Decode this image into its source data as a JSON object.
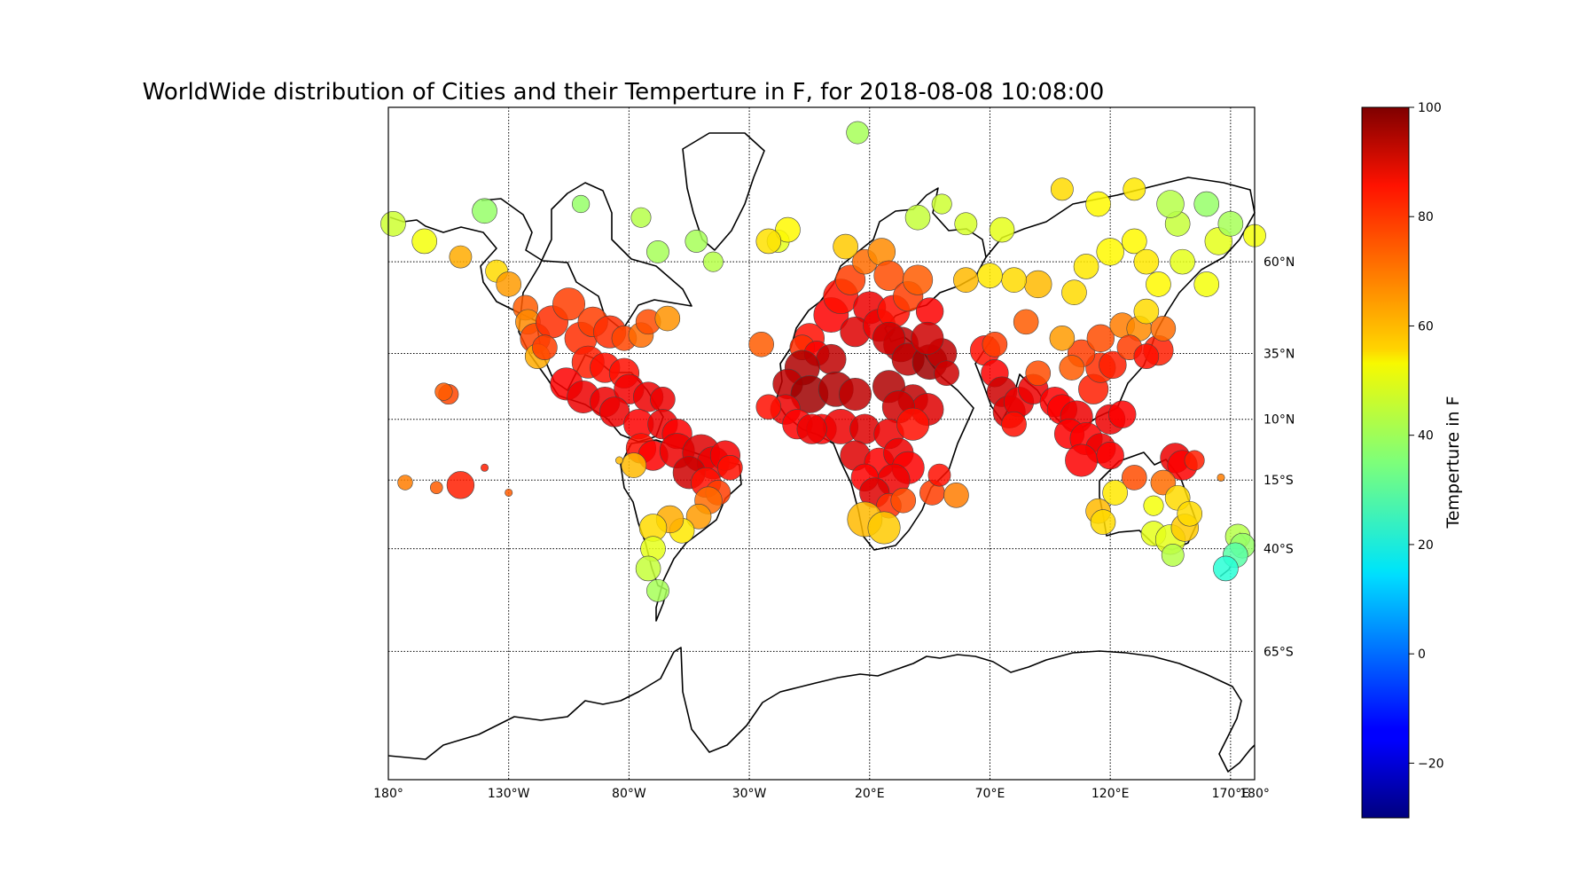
{
  "title": "WorldWide distribution of Cities and their Temperture in F, for 2018-08-08 10:08:00",
  "colorbar": {
    "label": "Temperture in F",
    "ticks": [
      100,
      80,
      60,
      40,
      20,
      0,
      -20
    ],
    "range": [
      -30,
      100
    ],
    "colormap": "jet"
  },
  "map": {
    "projection": "Mercator",
    "lon_range": [
      -180,
      180
    ],
    "lat_range": [
      -80,
      80
    ],
    "parallels": [
      {
        "lat": 60,
        "label": "60°N"
      },
      {
        "lat": 35,
        "label": "35°N"
      },
      {
        "lat": 10,
        "label": "10°N"
      },
      {
        "lat": -15,
        "label": "15°S"
      },
      {
        "lat": -40,
        "label": "40°S"
      },
      {
        "lat": -65,
        "label": "65°S"
      }
    ],
    "meridians": [
      {
        "lon": -180,
        "label": "180°"
      },
      {
        "lon": -130,
        "label": "130°W"
      },
      {
        "lon": -80,
        "label": "80°W"
      },
      {
        "lon": -30,
        "label": "30°W"
      },
      {
        "lon": 20,
        "label": "20°E"
      },
      {
        "lon": 70,
        "label": "70°E"
      },
      {
        "lon": 120,
        "label": "120°E"
      },
      {
        "lon": 170,
        "label": "170°E"
      },
      {
        "lon": 180,
        "label": "180°"
      }
    ]
  },
  "chart_data": {
    "type": "scatter",
    "title": "WorldWide distribution of Cities and their Temperture in F, for 2018-08-08 10:08:00",
    "xlabel": "",
    "ylabel": "",
    "colorbar_label": "Temperture in F",
    "fields": [
      "lon",
      "lat",
      "temp_F",
      "relative_size"
    ],
    "points": [
      [
        -178,
        67,
        45,
        1.0
      ],
      [
        -165,
        64,
        50,
        1.0
      ],
      [
        -150,
        61,
        62,
        0.9
      ],
      [
        -140,
        69,
        38,
        1.0
      ],
      [
        -135,
        58,
        56,
        0.9
      ],
      [
        -130,
        55,
        64,
        1.0
      ],
      [
        -123,
        49,
        72,
        1.0
      ],
      [
        -122,
        45,
        66,
        1.0
      ],
      [
        -119,
        40,
        75,
        1.2
      ],
      [
        -118,
        34,
        62,
        1.0
      ],
      [
        -112,
        45,
        78,
        1.3
      ],
      [
        -115,
        37,
        76,
        1.0
      ],
      [
        -105,
        50,
        76,
        1.3
      ],
      [
        -100,
        40,
        78,
        1.3
      ],
      [
        -95,
        45,
        76,
        1.2
      ],
      [
        -88,
        42,
        78,
        1.3
      ],
      [
        -82,
        40,
        75,
        1.0
      ],
      [
        -75,
        41,
        70,
        1.0
      ],
      [
        -72,
        45,
        74,
        1.0
      ],
      [
        -64,
        46,
        65,
        1.0
      ],
      [
        -97,
        32,
        80,
        1.3
      ],
      [
        -90,
        30,
        82,
        1.2
      ],
      [
        -82,
        28,
        82,
        1.2
      ],
      [
        -106,
        24,
        84,
        1.3
      ],
      [
        -99,
        19,
        86,
        1.3
      ],
      [
        -90,
        17,
        86,
        1.2
      ],
      [
        -80,
        22,
        85,
        1.2
      ],
      [
        -72,
        19,
        86,
        1.2
      ],
      [
        -66,
        18,
        86,
        1.0
      ],
      [
        -86,
        13,
        86,
        1.2
      ],
      [
        -76,
        8,
        84,
        1.2
      ],
      [
        -66,
        8,
        86,
        1.2
      ],
      [
        -60,
        4,
        84,
        1.2
      ],
      [
        -155,
        20,
        75,
        0.8
      ],
      [
        -157,
        21,
        72,
        0.7
      ],
      [
        -75,
        -2,
        82,
        1.2
      ],
      [
        -70,
        -5,
        84,
        1.2
      ],
      [
        -60,
        -3,
        86,
        1.4
      ],
      [
        -50,
        -4,
        88,
        1.5
      ],
      [
        -45,
        -8,
        86,
        1.3
      ],
      [
        -40,
        -5,
        85,
        1.2
      ],
      [
        -38,
        -10,
        82,
        1.0
      ],
      [
        -55,
        -12,
        90,
        1.3
      ],
      [
        -48,
        -16,
        82,
        1.2
      ],
      [
        -43,
        -20,
        76,
        1.0
      ],
      [
        -47,
        -23,
        70,
        1.1
      ],
      [
        -51,
        -29,
        64,
        1.0
      ],
      [
        -58,
        -34,
        54,
        1.0
      ],
      [
        -63,
        -30,
        62,
        1.1
      ],
      [
        -70,
        -33,
        56,
        1.1
      ],
      [
        -70,
        -40,
        48,
        1.0
      ],
      [
        -72,
        -46,
        44,
        1.0
      ],
      [
        -68,
        -52,
        40,
        0.9
      ],
      [
        -78,
        -9,
        60,
        1.0
      ],
      [
        -173,
        -16,
        68,
        0.6
      ],
      [
        -160,
        -18,
        72,
        0.5
      ],
      [
        -150,
        -17,
        80,
        1.1
      ],
      [
        -140,
        -10,
        80,
        0.3
      ],
      [
        -130,
        -20,
        72,
        0.3
      ],
      [
        -84,
        -7,
        60,
        0.3
      ],
      [
        -5,
        40,
        82,
        1.2
      ],
      [
        -8,
        37,
        78,
        1.0
      ],
      [
        -2,
        35,
        84,
        1.0
      ],
      [
        4,
        47,
        84,
        1.4
      ],
      [
        8,
        52,
        82,
        1.4
      ],
      [
        12,
        56,
        76,
        1.2
      ],
      [
        18,
        60,
        70,
        1.0
      ],
      [
        25,
        62,
        66,
        1.1
      ],
      [
        10,
        63,
        58,
        1.0
      ],
      [
        28,
        57,
        74,
        1.2
      ],
      [
        20,
        49,
        86,
        1.3
      ],
      [
        14,
        42,
        88,
        1.2
      ],
      [
        24,
        44,
        86,
        1.3
      ],
      [
        30,
        48,
        82,
        1.3
      ],
      [
        36,
        52,
        76,
        1.2
      ],
      [
        40,
        56,
        72,
        1.2
      ],
      [
        45,
        48,
        84,
        1.1
      ],
      [
        33,
        38,
        92,
        1.4
      ],
      [
        28,
        40,
        90,
        1.3
      ],
      [
        36,
        33,
        92,
        1.3
      ],
      [
        45,
        32,
        96,
        1.4
      ],
      [
        50,
        35,
        92,
        1.2
      ],
      [
        52,
        28,
        90,
        1.0
      ],
      [
        44,
        40,
        90,
        1.3
      ],
      [
        4,
        33,
        92,
        1.2
      ],
      [
        -8,
        30,
        94,
        1.4
      ],
      [
        -14,
        24,
        92,
        1.2
      ],
      [
        -5,
        20,
        96,
        1.5
      ],
      [
        6,
        22,
        94,
        1.4
      ],
      [
        14,
        20,
        92,
        1.3
      ],
      [
        28,
        23,
        94,
        1.3
      ],
      [
        38,
        18,
        92,
        1.2
      ],
      [
        44,
        14,
        88,
        1.3
      ],
      [
        32,
        15,
        90,
        1.3
      ],
      [
        -15,
        14,
        86,
        1.2
      ],
      [
        -10,
        8,
        84,
        1.2
      ],
      [
        0,
        6,
        84,
        1.2
      ],
      [
        8,
        7,
        86,
        1.4
      ],
      [
        18,
        6,
        88,
        1.2
      ],
      [
        28,
        4,
        86,
        1.2
      ],
      [
        38,
        8,
        82,
        1.3
      ],
      [
        -4,
        6,
        86,
        1.2
      ],
      [
        -22,
        15,
        82,
        1.0
      ],
      [
        -25,
        38,
        72,
        1.0
      ],
      [
        14,
        -5,
        88,
        1.2
      ],
      [
        24,
        -8,
        84,
        1.2
      ],
      [
        32,
        -4,
        86,
        1.2
      ],
      [
        36,
        -10,
        84,
        1.3
      ],
      [
        30,
        -15,
        86,
        1.3
      ],
      [
        18,
        -14,
        84,
        1.1
      ],
      [
        22,
        -20,
        88,
        1.2
      ],
      [
        28,
        -25,
        78,
        1.0
      ],
      [
        18,
        -30,
        60,
        1.4
      ],
      [
        26,
        -33,
        58,
        1.3
      ],
      [
        34,
        -23,
        74,
        1.0
      ],
      [
        46,
        -20,
        76,
        1.0
      ],
      [
        49,
        -13,
        82,
        0.9
      ],
      [
        56,
        -21,
        68,
        1.0
      ],
      [
        68,
        36,
        82,
        1.2
      ],
      [
        72,
        28,
        84,
        1.1
      ],
      [
        75,
        21,
        90,
        1.2
      ],
      [
        78,
        13,
        88,
        1.3
      ],
      [
        82,
        17,
        86,
        1.2
      ],
      [
        88,
        22,
        86,
        1.2
      ],
      [
        80,
        8,
        82,
        1.0
      ],
      [
        72,
        38,
        76,
        1.0
      ],
      [
        85,
        45,
        72,
        1.0
      ],
      [
        90,
        28,
        74,
        1.0
      ],
      [
        97,
        17,
        84,
        1.2
      ],
      [
        100,
        14,
        84,
        1.2
      ],
      [
        106,
        11,
        86,
        1.3
      ],
      [
        103,
        4,
        84,
        1.2
      ],
      [
        110,
        2,
        84,
        1.3
      ],
      [
        116,
        -2,
        86,
        1.2
      ],
      [
        108,
        -7,
        84,
        1.3
      ],
      [
        120,
        -5,
        84,
        1.1
      ],
      [
        120,
        10,
        86,
        1.2
      ],
      [
        125,
        12,
        84,
        1.1
      ],
      [
        113,
        22,
        80,
        1.2
      ],
      [
        116,
        30,
        78,
        1.2
      ],
      [
        121,
        31,
        80,
        1.1
      ],
      [
        108,
        35,
        76,
        1.1
      ],
      [
        116,
        40,
        74,
        1.1
      ],
      [
        125,
        44,
        68,
        1.0
      ],
      [
        132,
        43,
        66,
        1.0
      ],
      [
        128,
        37,
        76,
        1.0
      ],
      [
        140,
        36,
        80,
        1.2
      ],
      [
        135,
        34,
        82,
        1.0
      ],
      [
        142,
        43,
        70,
        1.0
      ],
      [
        104,
        30,
        72,
        1.0
      ],
      [
        100,
        40,
        64,
        1.0
      ],
      [
        90,
        55,
        60,
        1.1
      ],
      [
        80,
        56,
        56,
        1.0
      ],
      [
        70,
        57,
        54,
        1.0
      ],
      [
        60,
        56,
        60,
        1.0
      ],
      [
        105,
        53,
        56,
        1.0
      ],
      [
        110,
        59,
        54,
        1.0
      ],
      [
        120,
        62,
        52,
        1.1
      ],
      [
        130,
        64,
        52,
        1.0
      ],
      [
        135,
        60,
        54,
        1.0
      ],
      [
        140,
        55,
        52,
        1.0
      ],
      [
        150,
        60,
        48,
        1.0
      ],
      [
        160,
        55,
        50,
        1.0
      ],
      [
        135,
        48,
        56,
        1.0
      ],
      [
        148,
        67,
        44,
        1.0
      ],
      [
        165,
        64,
        48,
        1.1
      ],
      [
        170,
        67,
        40,
        1.0
      ],
      [
        145,
        70,
        42,
        1.1
      ],
      [
        160,
        70,
        38,
        1.0
      ],
      [
        115,
        70,
        52,
        1.0
      ],
      [
        100,
        72,
        56,
        0.9
      ],
      [
        130,
        72,
        54,
        0.9
      ],
      [
        75,
        66,
        48,
        1.0
      ],
      [
        60,
        67,
        46,
        0.9
      ],
      [
        40,
        68,
        44,
        1.0
      ],
      [
        180,
        65,
        50,
        0.9
      ],
      [
        147,
        -6,
        86,
        1.2
      ],
      [
        150,
        -9,
        84,
        1.2
      ],
      [
        155,
        -7,
        80,
        0.8
      ],
      [
        166,
        -14,
        68,
        0.3
      ],
      [
        130,
        -14,
        74,
        1.0
      ],
      [
        142,
        -16,
        70,
        1.0
      ],
      [
        122,
        -20,
        54,
        1.0
      ],
      [
        148,
        -22,
        56,
        1.0
      ],
      [
        138,
        -25,
        50,
        0.8
      ],
      [
        115,
        -27,
        60,
        1.0
      ],
      [
        117,
        -31,
        56,
        1.0
      ],
      [
        138,
        -35,
        48,
        1.0
      ],
      [
        145,
        -37,
        48,
        1.2
      ],
      [
        151,
        -33,
        58,
        1.1
      ],
      [
        153,
        -28,
        56,
        1.0
      ],
      [
        146,
        -42,
        42,
        0.9
      ],
      [
        173,
        -36,
        42,
        1.0
      ],
      [
        175,
        -39,
        38,
        1.0
      ],
      [
        172,
        -42,
        30,
        1.0
      ],
      [
        168,
        -46,
        24,
        1.0
      ],
      [
        -18,
        64,
        48,
        0.9
      ],
      [
        -14,
        66,
        52,
        1.0
      ],
      [
        -22,
        64,
        55,
        1.0
      ],
      [
        -52,
        64,
        40,
        0.9
      ],
      [
        -45,
        60,
        42,
        0.8
      ],
      [
        -68,
        62,
        40,
        0.9
      ],
      [
        -75,
        68,
        42,
        0.8
      ],
      [
        15,
        78,
        40,
        0.9
      ],
      [
        50,
        70,
        45,
        0.8
      ],
      [
        -100,
        70,
        38,
        0.7
      ]
    ]
  }
}
